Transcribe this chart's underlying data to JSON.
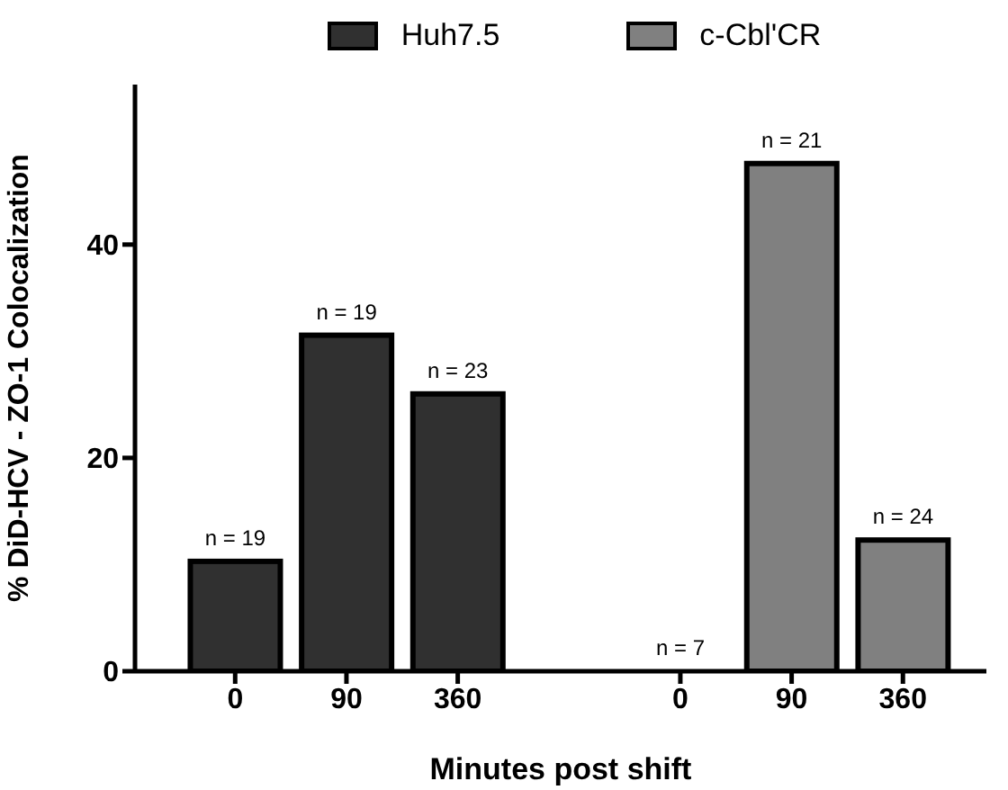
{
  "chart_data": {
    "type": "bar",
    "xlabel": "Minutes post shift",
    "ylabel": "% DiD-HCV - ZO-1 Colocalization",
    "categories": [
      "0",
      "90",
      "360",
      null,
      "0",
      "90",
      "360"
    ],
    "series": [
      {
        "name": "Huh7.5",
        "color": "#303030",
        "values": [
          10.3,
          31.5,
          26.0,
          null,
          null,
          null,
          null
        ]
      },
      {
        "name": "c-Cbl'CR",
        "color": "#808080",
        "values": [
          null,
          null,
          null,
          null,
          0,
          47.6,
          12.3
        ]
      }
    ],
    "annotations": [
      "n = 19",
      "n = 19",
      "n = 23",
      "n = 7",
      "n = 21",
      "n = 24"
    ],
    "ylim": [
      0,
      55
    ],
    "yticks": [
      0,
      20,
      40
    ],
    "grid": false,
    "legend": "top"
  }
}
